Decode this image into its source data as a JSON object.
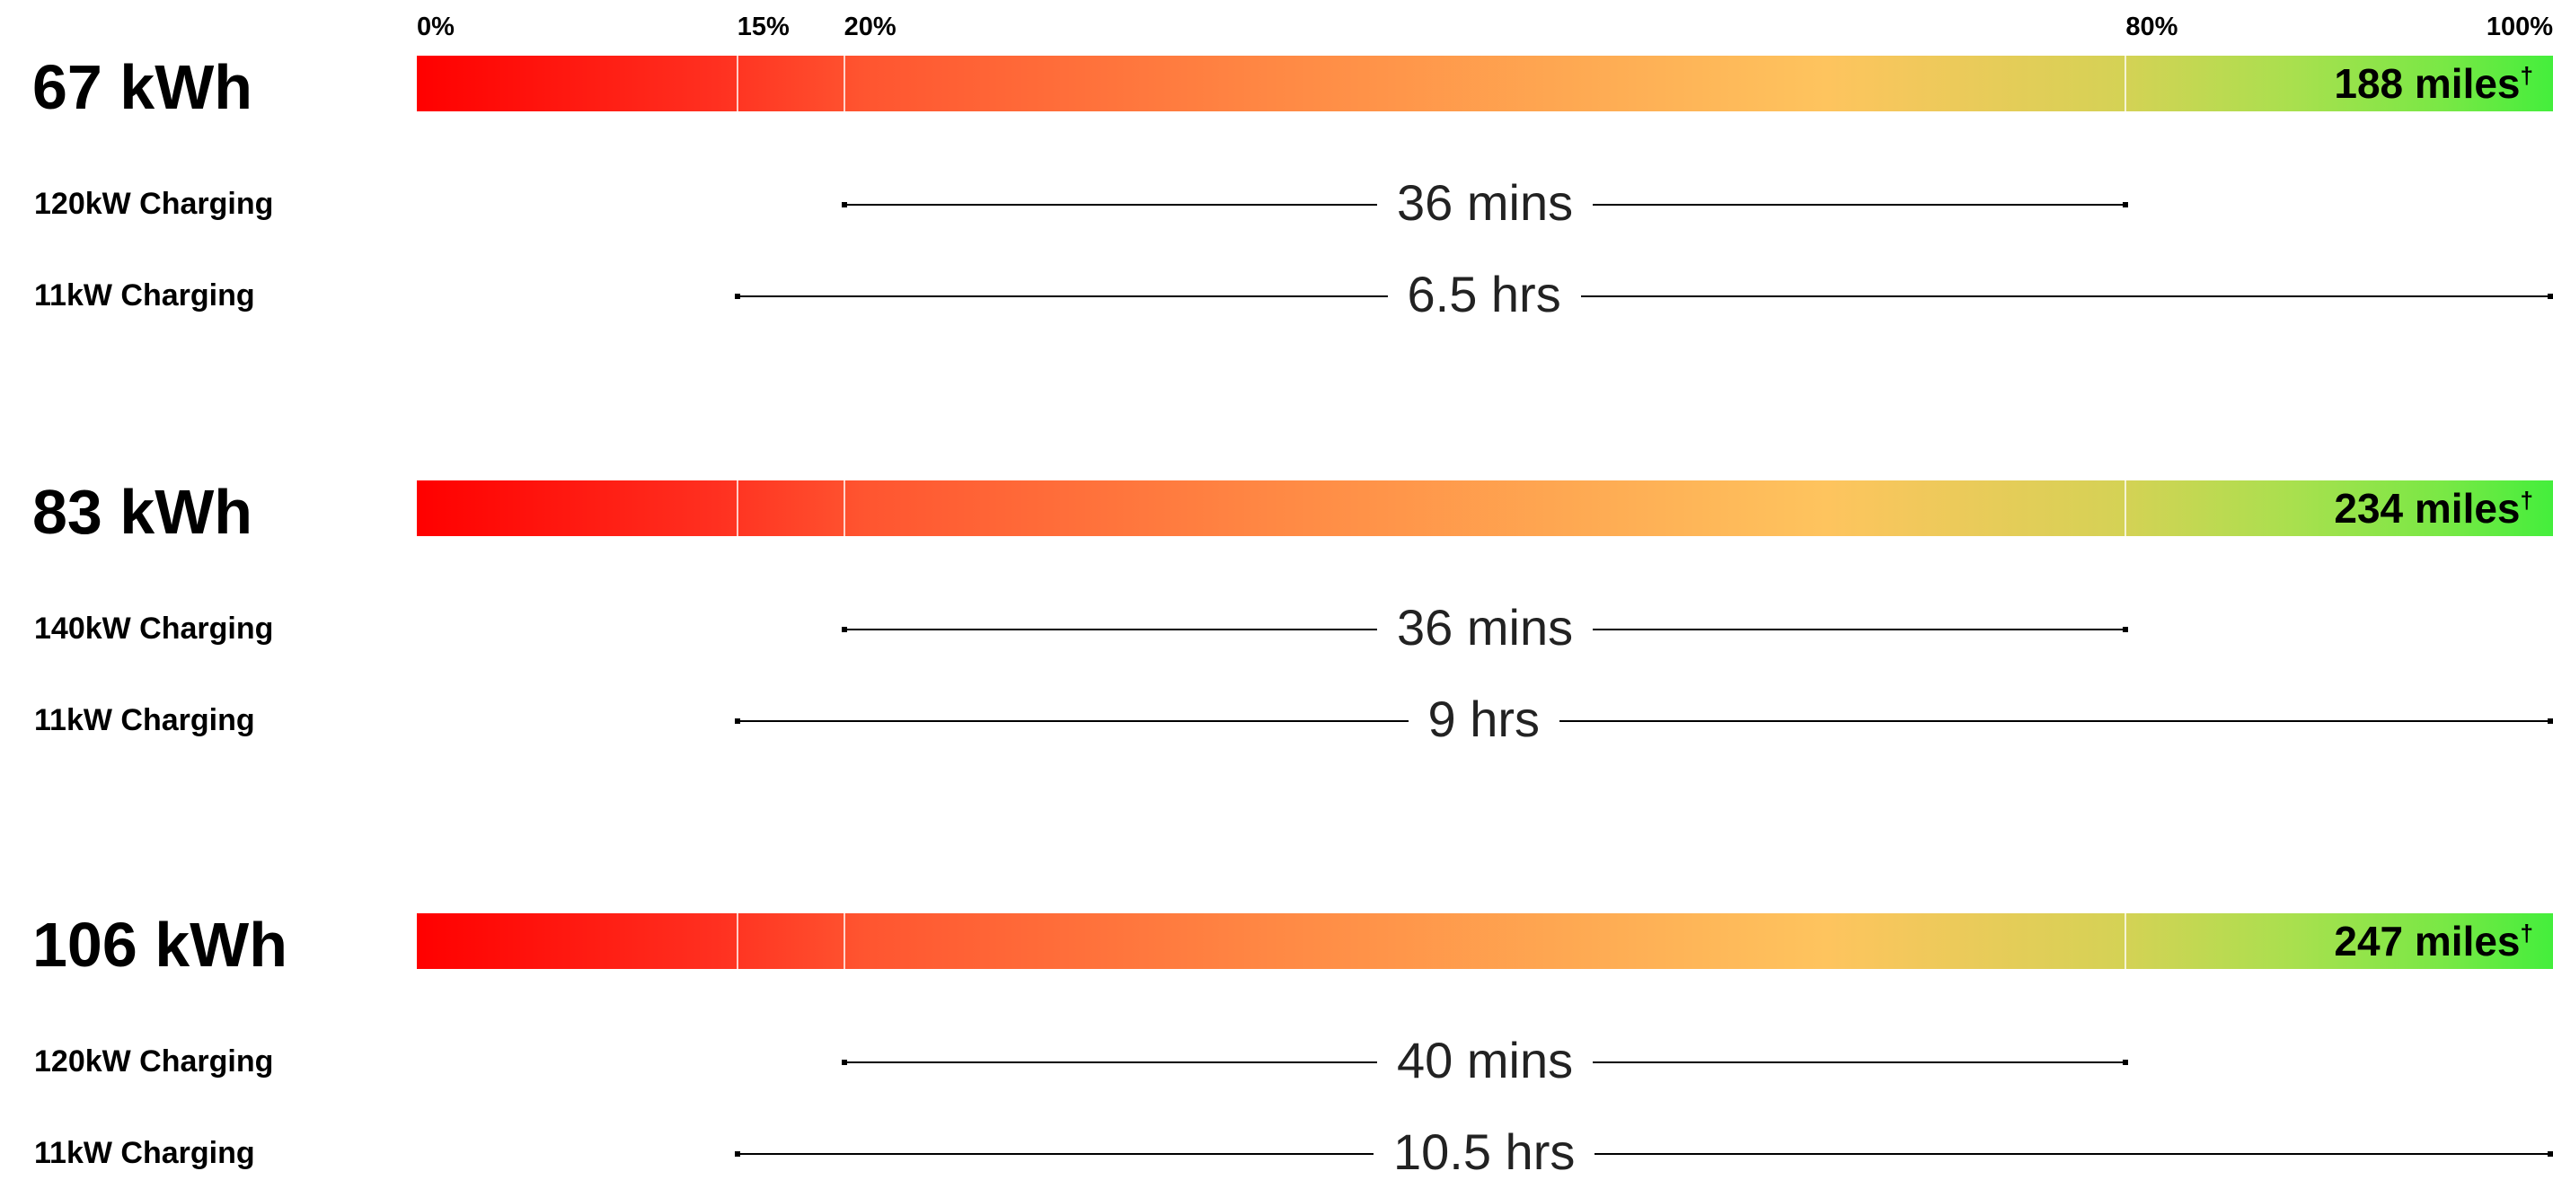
{
  "chart_data": {
    "type": "bar",
    "axis": {
      "ticks": [
        {
          "value": 0,
          "label": "0%"
        },
        {
          "value": 15,
          "label": "15%"
        },
        {
          "value": 20,
          "label": "20%"
        },
        {
          "value": 80,
          "label": "80%"
        },
        {
          "value": 100,
          "label": "100%"
        }
      ],
      "xlim": [
        0,
        100
      ]
    },
    "gradient_colors": [
      "#ff0000",
      "#fec45e",
      "#44ee3c"
    ],
    "batteries": [
      {
        "label": "67 kWh",
        "range_label": "188 miles",
        "range_mark": "†",
        "charging": [
          {
            "label": "120kW Charging",
            "from": 20,
            "to": 80,
            "time": "36 mins"
          },
          {
            "label": "11kW Charging",
            "from": 15,
            "to": 100,
            "time": "6.5 hrs"
          }
        ]
      },
      {
        "label": "83 kWh",
        "range_label": "234 miles",
        "range_mark": "†",
        "charging": [
          {
            "label": "140kW Charging",
            "from": 20,
            "to": 80,
            "time": "36 mins"
          },
          {
            "label": "11kW Charging",
            "from": 15,
            "to": 100,
            "time": "9 hrs"
          }
        ]
      },
      {
        "label": "106 kWh",
        "range_label": "247 miles",
        "range_mark": "†",
        "charging": [
          {
            "label": "120kW Charging",
            "from": 20,
            "to": 80,
            "time": "40 mins"
          },
          {
            "label": "11kW Charging",
            "from": 15,
            "to": 100,
            "time": "10.5 hrs"
          }
        ]
      }
    ]
  }
}
